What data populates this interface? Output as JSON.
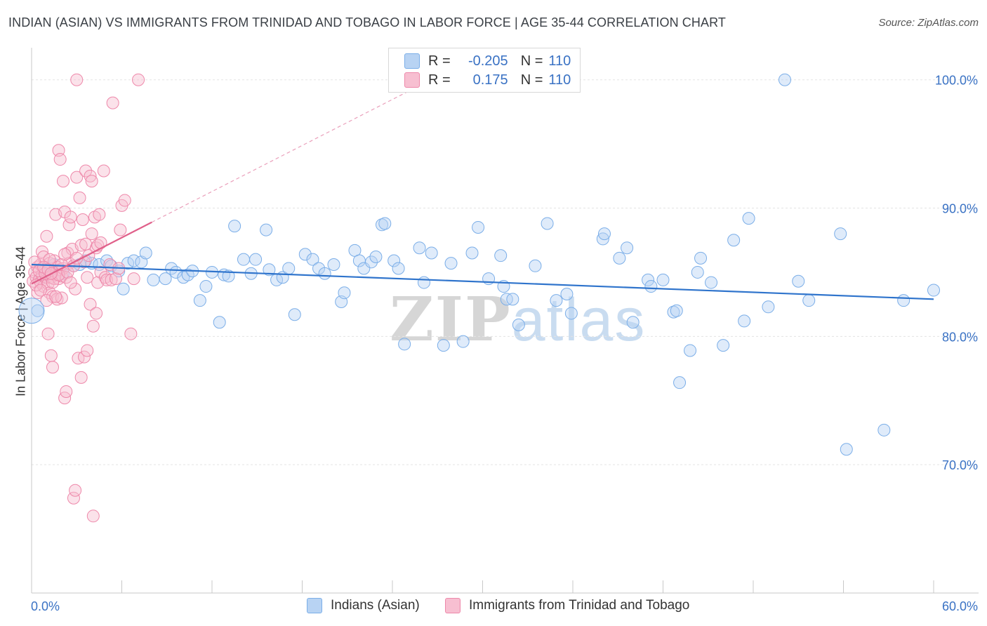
{
  "title": "INDIAN (ASIAN) VS IMMIGRANTS FROM TRINIDAD AND TOBAGO IN LABOR FORCE | AGE 35-44 CORRELATION CHART",
  "source": "Source: ZipAtlas.com",
  "watermark": {
    "zip": "ZIP",
    "atlas": "atlas"
  },
  "legend": {
    "r_label": "R =",
    "n_label": "N =",
    "series": [
      {
        "name": "Indians (Asian)",
        "r": "-0.205",
        "n": "110",
        "color": "#7baee8",
        "fill": "#b8d3f3"
      },
      {
        "name": "Immigrants from Trinidad and Tobago",
        "r": "0.175",
        "n": "110",
        "color": "#ee88aa",
        "fill": "#f7bfd1"
      }
    ]
  },
  "chart_data": {
    "type": "scatter",
    "title": "INDIAN (ASIAN) VS IMMIGRANTS FROM TRINIDAD AND TOBAGO IN LABOR FORCE | AGE 35-44 CORRELATION CHART",
    "xlabel": "",
    "ylabel": "In Labor Force | Age 35-44",
    "xlim": [
      0,
      60
    ],
    "ylim": [
      60,
      102.5
    ],
    "x_tick_labels": [
      "0.0%",
      "60.0%"
    ],
    "y_ticks": [
      70,
      80,
      90,
      100
    ],
    "y_tick_labels": [
      "70.0%",
      "80.0%",
      "90.0%",
      "100.0%"
    ],
    "grid": true,
    "series": [
      {
        "name": "Indians (Asian)",
        "color": "#7baee8",
        "trend": {
          "x": [
            0,
            60
          ],
          "y": [
            85.6,
            82.9
          ]
        },
        "points": [
          [
            0.4,
            82.0
          ],
          [
            0.6,
            84.5
          ],
          [
            0.8,
            85.0
          ],
          [
            1.0,
            84.8
          ],
          [
            1.2,
            85.3
          ],
          [
            1.5,
            85.6
          ],
          [
            1.8,
            85.1
          ],
          [
            2.1,
            84.9
          ],
          [
            2.8,
            85.5
          ],
          [
            3.2,
            85.6
          ],
          [
            3.6,
            85.9
          ],
          [
            4.0,
            85.7
          ],
          [
            4.5,
            85.6
          ],
          [
            5.0,
            85.9
          ],
          [
            5.3,
            85.5
          ],
          [
            5.8,
            85.1
          ],
          [
            6.1,
            83.7
          ],
          [
            6.4,
            85.7
          ],
          [
            6.8,
            85.9
          ],
          [
            7.3,
            85.8
          ],
          [
            7.6,
            86.5
          ],
          [
            8.1,
            84.4
          ],
          [
            8.9,
            84.5
          ],
          [
            9.3,
            85.3
          ],
          [
            9.6,
            85.0
          ],
          [
            10.1,
            84.6
          ],
          [
            10.4,
            84.8
          ],
          [
            10.7,
            85.1
          ],
          [
            11.2,
            82.8
          ],
          [
            11.6,
            83.9
          ],
          [
            12.0,
            85.0
          ],
          [
            12.5,
            81.1
          ],
          [
            12.8,
            84.8
          ],
          [
            13.1,
            84.7
          ],
          [
            13.5,
            88.6
          ],
          [
            14.1,
            86.0
          ],
          [
            14.6,
            84.9
          ],
          [
            14.9,
            86.0
          ],
          [
            15.6,
            88.3
          ],
          [
            15.8,
            85.2
          ],
          [
            16.3,
            84.4
          ],
          [
            16.7,
            84.6
          ],
          [
            17.1,
            85.3
          ],
          [
            17.5,
            81.7
          ],
          [
            18.2,
            86.4
          ],
          [
            18.7,
            86.0
          ],
          [
            19.1,
            85.3
          ],
          [
            19.5,
            84.9
          ],
          [
            20.1,
            85.6
          ],
          [
            20.6,
            82.7
          ],
          [
            20.8,
            83.4
          ],
          [
            21.5,
            86.7
          ],
          [
            21.8,
            85.9
          ],
          [
            22.1,
            85.3
          ],
          [
            22.6,
            85.8
          ],
          [
            22.9,
            86.2
          ],
          [
            23.3,
            88.7
          ],
          [
            23.5,
            88.8
          ],
          [
            24.1,
            85.9
          ],
          [
            24.4,
            85.3
          ],
          [
            24.8,
            79.4
          ],
          [
            25.8,
            86.9
          ],
          [
            26.1,
            84.2
          ],
          [
            26.6,
            86.5
          ],
          [
            27.4,
            79.3
          ],
          [
            27.9,
            85.7
          ],
          [
            28.7,
            79.6
          ],
          [
            29.3,
            86.5
          ],
          [
            29.7,
            88.5
          ],
          [
            30.4,
            84.5
          ],
          [
            31.2,
            86.3
          ],
          [
            31.4,
            83.9
          ],
          [
            31.6,
            82.9
          ],
          [
            32.0,
            82.9
          ],
          [
            32.4,
            80.9
          ],
          [
            33.5,
            85.5
          ],
          [
            34.3,
            88.8
          ],
          [
            34.9,
            82.8
          ],
          [
            35.6,
            83.3
          ],
          [
            35.9,
            81.8
          ],
          [
            38.0,
            87.6
          ],
          [
            38.1,
            88.0
          ],
          [
            39.1,
            86.1
          ],
          [
            39.6,
            86.9
          ],
          [
            40.0,
            81.1
          ],
          [
            41.0,
            84.4
          ],
          [
            41.2,
            83.9
          ],
          [
            42.0,
            84.4
          ],
          [
            42.7,
            81.9
          ],
          [
            42.9,
            82.0
          ],
          [
            43.1,
            76.4
          ],
          [
            43.8,
            78.9
          ],
          [
            44.3,
            85.0
          ],
          [
            44.5,
            86.1
          ],
          [
            45.2,
            84.2
          ],
          [
            46.0,
            79.3
          ],
          [
            46.7,
            87.5
          ],
          [
            47.4,
            81.2
          ],
          [
            47.7,
            89.2
          ],
          [
            49.0,
            82.3
          ],
          [
            50.1,
            100.0
          ],
          [
            51.0,
            84.3
          ],
          [
            51.7,
            82.8
          ],
          [
            53.8,
            88.0
          ],
          [
            54.2,
            71.2
          ],
          [
            56.7,
            72.7
          ],
          [
            58.0,
            82.8
          ],
          [
            60.0,
            83.6
          ]
        ]
      },
      {
        "name": "Immigrants from Trinidad and Tobago",
        "color": "#ee88aa",
        "trend": {
          "x": [
            0,
            8
          ],
          "y": [
            84.1,
            88.9
          ]
        },
        "trend_extension": {
          "x": [
            8,
            60
          ],
          "y": [
            88.9,
            120.0
          ]
        },
        "points": [
          [
            0.1,
            84.3
          ],
          [
            0.2,
            85.0
          ],
          [
            0.3,
            84.6
          ],
          [
            0.4,
            85.4
          ],
          [
            0.4,
            83.4
          ],
          [
            0.5,
            84.4
          ],
          [
            0.6,
            85.6
          ],
          [
            0.6,
            84.2
          ],
          [
            0.7,
            86.6
          ],
          [
            0.7,
            84.8
          ],
          [
            0.8,
            86.2
          ],
          [
            0.8,
            83.9
          ],
          [
            0.9,
            85.2
          ],
          [
            1.0,
            84.6
          ],
          [
            1.0,
            87.8
          ],
          [
            1.1,
            84.1
          ],
          [
            1.1,
            80.2
          ],
          [
            1.2,
            85.7
          ],
          [
            1.2,
            83.4
          ],
          [
            1.3,
            78.5
          ],
          [
            1.3,
            84.6
          ],
          [
            1.4,
            77.6
          ],
          [
            1.4,
            83.1
          ],
          [
            1.5,
            85.9
          ],
          [
            1.5,
            84.5
          ],
          [
            1.6,
            84.8
          ],
          [
            1.6,
            89.5
          ],
          [
            1.7,
            82.9
          ],
          [
            1.7,
            85.4
          ],
          [
            1.8,
            94.5
          ],
          [
            1.8,
            84.5
          ],
          [
            1.9,
            85.2
          ],
          [
            1.9,
            93.8
          ],
          [
            2.0,
            83.0
          ],
          [
            2.0,
            84.7
          ],
          [
            2.1,
            92.1
          ],
          [
            2.1,
            85.3
          ],
          [
            2.2,
            75.2
          ],
          [
            2.2,
            89.7
          ],
          [
            2.3,
            84.6
          ],
          [
            2.3,
            75.7
          ],
          [
            2.4,
            86.5
          ],
          [
            2.5,
            85.7
          ],
          [
            2.5,
            88.7
          ],
          [
            2.6,
            89.3
          ],
          [
            2.7,
            86.8
          ],
          [
            2.8,
            67.4
          ],
          [
            2.9,
            68.0
          ],
          [
            2.9,
            83.7
          ],
          [
            3.0,
            92.4
          ],
          [
            3.0,
            100.0
          ],
          [
            3.1,
            78.3
          ],
          [
            3.2,
            90.8
          ],
          [
            3.3,
            87.1
          ],
          [
            3.3,
            76.8
          ],
          [
            3.4,
            89.1
          ],
          [
            3.5,
            85.8
          ],
          [
            3.5,
            78.4
          ],
          [
            3.6,
            87.2
          ],
          [
            3.6,
            92.9
          ],
          [
            3.7,
            78.9
          ],
          [
            3.7,
            84.6
          ],
          [
            3.8,
            86.3
          ],
          [
            3.9,
            82.5
          ],
          [
            3.9,
            92.5
          ],
          [
            4.0,
            92.1
          ],
          [
            4.0,
            88.0
          ],
          [
            4.1,
            80.8
          ],
          [
            4.1,
            66.0
          ],
          [
            4.2,
            89.3
          ],
          [
            4.3,
            86.9
          ],
          [
            4.3,
            81.8
          ],
          [
            4.4,
            87.1
          ],
          [
            4.4,
            84.2
          ],
          [
            4.5,
            89.5
          ],
          [
            4.6,
            87.3
          ],
          [
            4.6,
            85.0
          ],
          [
            4.8,
            92.9
          ],
          [
            4.9,
            84.6
          ],
          [
            5.0,
            84.4
          ],
          [
            5.2,
            85.6
          ],
          [
            5.3,
            84.4
          ],
          [
            5.4,
            98.2
          ],
          [
            5.6,
            84.5
          ],
          [
            5.8,
            85.3
          ],
          [
            5.9,
            88.3
          ],
          [
            6.0,
            90.2
          ],
          [
            6.2,
            90.6
          ],
          [
            6.6,
            80.2
          ],
          [
            6.8,
            84.5
          ],
          [
            7.1,
            100.0
          ],
          [
            0.2,
            85.8
          ],
          [
            0.3,
            84.0
          ],
          [
            0.5,
            85.1
          ],
          [
            0.9,
            84.9
          ],
          [
            1.0,
            82.8
          ],
          [
            1.2,
            86.0
          ],
          [
            1.4,
            84.2
          ],
          [
            1.6,
            83.1
          ],
          [
            1.8,
            84.8
          ],
          [
            2.0,
            85.6
          ],
          [
            2.2,
            86.4
          ],
          [
            2.4,
            85.0
          ],
          [
            2.6,
            84.2
          ],
          [
            2.8,
            85.5
          ],
          [
            3.0,
            86.1
          ],
          [
            0.6,
            83.6
          ],
          [
            0.8,
            85.4
          ],
          [
            1.1,
            85.2
          ],
          [
            1.3,
            84.9
          ]
        ]
      }
    ]
  }
}
